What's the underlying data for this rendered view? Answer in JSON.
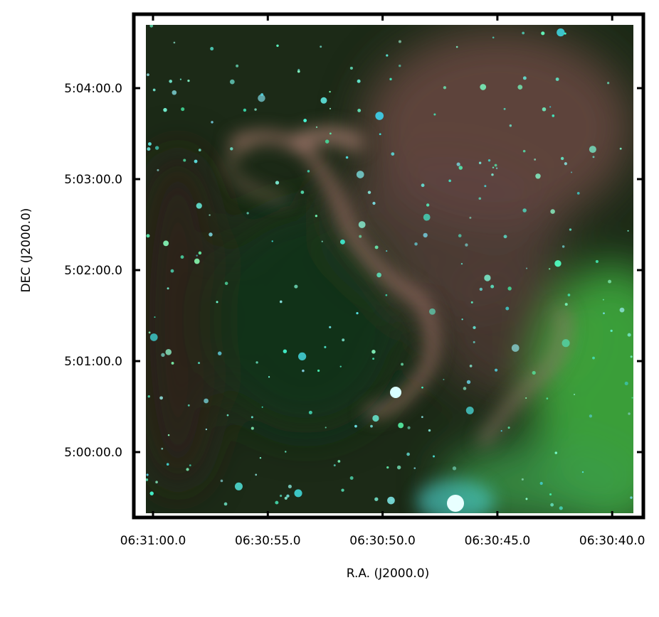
{
  "figure": {
    "x_axis": {
      "label": "R.A. (J2000.0)",
      "ticks": [
        "06:31:00.0",
        "06:30:55.0",
        "06:30:50.0",
        "06:30:45.0",
        "06:30:40.0"
      ]
    },
    "y_axis": {
      "label": "DEC (J2000.0)",
      "ticks": [
        "5:04:00.0",
        "5:03:00.0",
        "5:02:00.0",
        "5:01:00.0",
        "5:00:00.0"
      ]
    }
  }
}
